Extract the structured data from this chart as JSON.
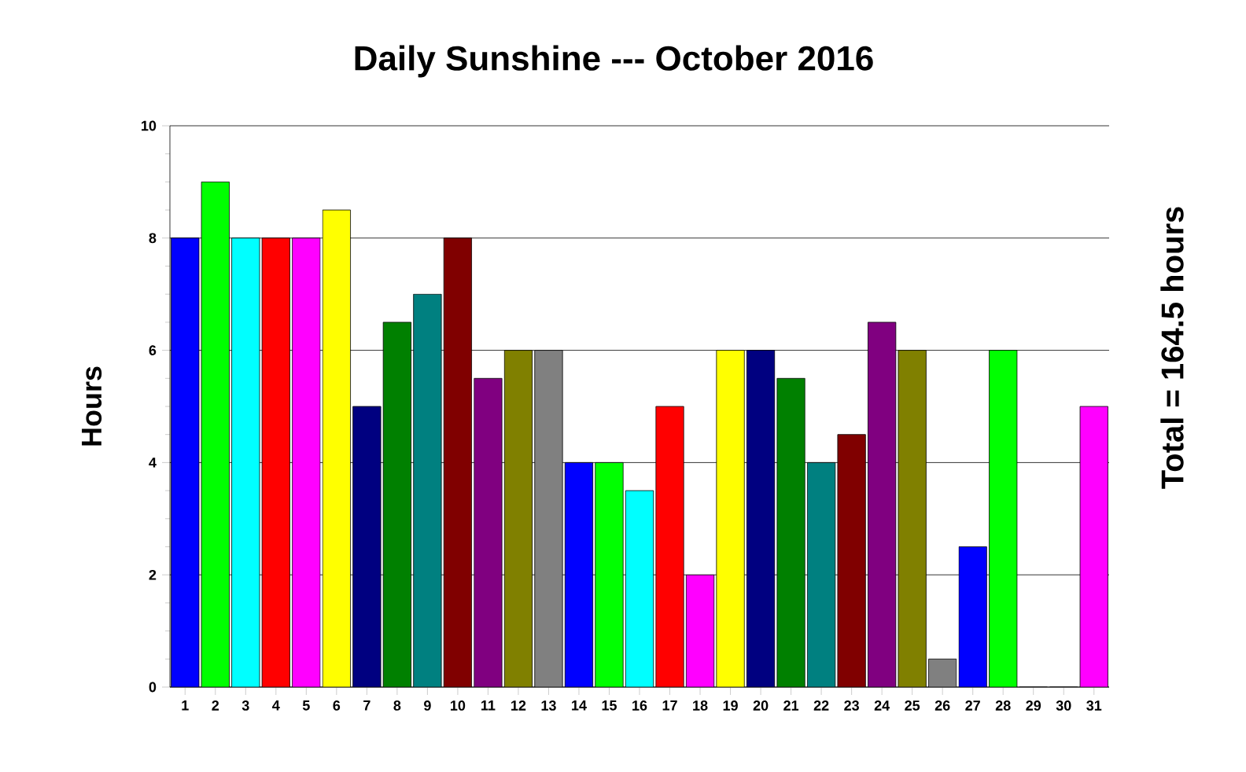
{
  "chart_data": {
    "type": "bar",
    "title": "Daily Sunshine --- October 2016",
    "ylabel": "Hours",
    "annotations": [
      "Total = 164.5 hours"
    ],
    "categories": [
      "1",
      "2",
      "3",
      "4",
      "5",
      "6",
      "7",
      "8",
      "9",
      "10",
      "11",
      "12",
      "13",
      "14",
      "15",
      "16",
      "17",
      "18",
      "19",
      "20",
      "21",
      "22",
      "23",
      "24",
      "25",
      "26",
      "27",
      "28",
      "29",
      "30",
      "31"
    ],
    "values": [
      8,
      9,
      8,
      8,
      8,
      8.5,
      5,
      6.5,
      7,
      8,
      5.5,
      6,
      6,
      4,
      4,
      3.5,
      5,
      2,
      6,
      6,
      5.5,
      4,
      4.5,
      6.5,
      6,
      0.5,
      2.5,
      6,
      0,
      0,
      5
    ],
    "colors": [
      "#0000ff",
      "#00ff00",
      "#00ffff",
      "#ff0000",
      "#ff00ff",
      "#ffff00",
      "#000080",
      "#008000",
      "#008080",
      "#800000",
      "#800080",
      "#808000",
      "#808080",
      "#0000ff",
      "#00ff00",
      "#00ffff",
      "#ff0000",
      "#ff00ff",
      "#ffff00",
      "#000080",
      "#008000",
      "#008080",
      "#800000",
      "#800080",
      "#808000",
      "#808080",
      "#0000ff",
      "#00ff00",
      "#00ffff",
      "#ff0000",
      "#ff00ff"
    ],
    "ylim": [
      0,
      10
    ],
    "yticks": [
      0,
      2,
      4,
      6,
      8,
      10
    ],
    "grid": "y"
  }
}
